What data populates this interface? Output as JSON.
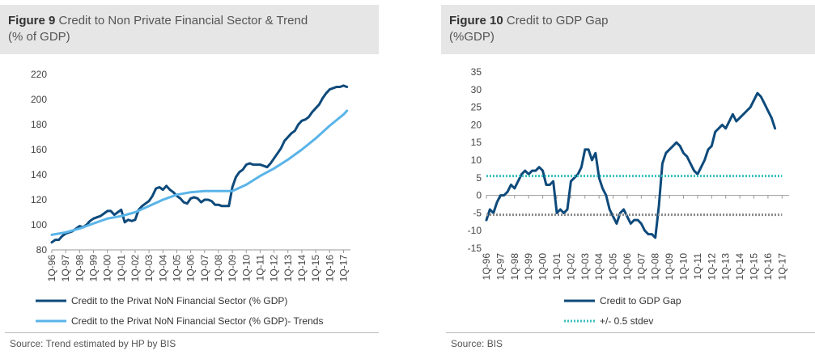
{
  "colors": {
    "dark": "#0e4a7b",
    "light": "#5ab4e8",
    "teal": "#3cbfbf",
    "grey": "#8a8a8a",
    "header_bg": "#e6e6e6"
  },
  "figure9": {
    "label": "Figure 9",
    "title_line1": "Credit to Non Private Financial Sector & Trend",
    "title_line2": "(% of GDP)",
    "source": "Source: Trend estimated by HP by BIS"
  },
  "figure10": {
    "label": "Figure 10",
    "title_line1": "Credit to GDP Gap",
    "title_line2": "(%GDP)",
    "source": "Source: BIS"
  },
  "chart_data": [
    {
      "type": "line",
      "title": "Credit to Non Private Financial Sector & Trend (% of GDP)",
      "x_ticks": [
        "1Q-96",
        "1Q-97",
        "1Q-98",
        "1Q-99",
        "1Q-00",
        "1Q-01",
        "1Q-02",
        "1Q-03",
        "1Q-04",
        "1Q-05",
        "1Q-06",
        "1Q-07",
        "1Q-08",
        "1Q-09",
        "1Q-10",
        "1Q-11",
        "1Q-12",
        "1Q-13",
        "1Q-14",
        "1Q-15",
        "1Q-16",
        "1Q-17"
      ],
      "ylim": [
        80,
        220
      ],
      "y_ticks": [
        80,
        100,
        120,
        140,
        160,
        180,
        200,
        220
      ],
      "grid": "none",
      "legend_position": "bottom",
      "series": [
        {
          "name": "Credit to the Privat NoN Financial Sector (% GDP)",
          "style": "dark",
          "points": [
            [
              1996.0,
              86
            ],
            [
              1996.25,
              88
            ],
            [
              1996.5,
              88
            ],
            [
              1996.75,
              91
            ],
            [
              1997.0,
              93
            ],
            [
              1997.25,
              94
            ],
            [
              1997.5,
              95
            ],
            [
              1997.75,
              97
            ],
            [
              1998.0,
              99
            ],
            [
              1998.25,
              98
            ],
            [
              1998.5,
              100
            ],
            [
              1998.75,
              103
            ],
            [
              1999.0,
              105
            ],
            [
              1999.25,
              106
            ],
            [
              1999.5,
              107
            ],
            [
              1999.75,
              109
            ],
            [
              2000.0,
              111
            ],
            [
              2000.25,
              111
            ],
            [
              2000.5,
              108
            ],
            [
              2000.75,
              110
            ],
            [
              2001.0,
              112
            ],
            [
              2001.25,
              102
            ],
            [
              2001.5,
              104
            ],
            [
              2001.75,
              103
            ],
            [
              2002.0,
              104
            ],
            [
              2002.25,
              112
            ],
            [
              2002.5,
              115
            ],
            [
              2002.75,
              117
            ],
            [
              2003.0,
              119
            ],
            [
              2003.25,
              123
            ],
            [
              2003.5,
              129
            ],
            [
              2003.75,
              130
            ],
            [
              2004.0,
              128
            ],
            [
              2004.25,
              131
            ],
            [
              2004.5,
              128
            ],
            [
              2004.75,
              126
            ],
            [
              2005.0,
              123
            ],
            [
              2005.25,
              121
            ],
            [
              2005.5,
              118
            ],
            [
              2005.75,
              117
            ],
            [
              2006.0,
              121
            ],
            [
              2006.25,
              122
            ],
            [
              2006.5,
              121
            ],
            [
              2006.75,
              118
            ],
            [
              2007.0,
              120
            ],
            [
              2007.25,
              120
            ],
            [
              2007.5,
              119
            ],
            [
              2007.75,
              116
            ],
            [
              2008.0,
              116
            ],
            [
              2008.25,
              115
            ],
            [
              2008.5,
              115
            ],
            [
              2008.75,
              115
            ],
            [
              2009.0,
              130
            ],
            [
              2009.25,
              138
            ],
            [
              2009.5,
              142
            ],
            [
              2009.75,
              144
            ],
            [
              2010.0,
              148
            ],
            [
              2010.25,
              149
            ],
            [
              2010.5,
              148
            ],
            [
              2010.75,
              148
            ],
            [
              2011.0,
              148
            ],
            [
              2011.25,
              147
            ],
            [
              2011.5,
              146
            ],
            [
              2011.75,
              149
            ],
            [
              2012.0,
              153
            ],
            [
              2012.25,
              157
            ],
            [
              2012.5,
              161
            ],
            [
              2012.75,
              167
            ],
            [
              2013.0,
              170
            ],
            [
              2013.25,
              173
            ],
            [
              2013.5,
              175
            ],
            [
              2013.75,
              180
            ],
            [
              2014.0,
              183
            ],
            [
              2014.25,
              184
            ],
            [
              2014.5,
              186
            ],
            [
              2014.75,
              190
            ],
            [
              2015.0,
              193
            ],
            [
              2015.25,
              196
            ],
            [
              2015.5,
              201
            ],
            [
              2015.75,
              205
            ],
            [
              2016.0,
              208
            ],
            [
              2016.25,
              209
            ],
            [
              2016.5,
              210
            ],
            [
              2016.75,
              210
            ],
            [
              2017.0,
              211
            ],
            [
              2017.25,
              210
            ]
          ]
        },
        {
          "name": "Credit to the Privat NoN Financial Sector (% GDP)- Trends",
          "style": "light",
          "points": [
            [
              1996.0,
              92
            ],
            [
              1997.0,
              94
            ],
            [
              1998.0,
              97
            ],
            [
              1999.0,
              101
            ],
            [
              2000.0,
              105
            ],
            [
              2001.0,
              107
            ],
            [
              2002.0,
              110
            ],
            [
              2003.0,
              115
            ],
            [
              2004.0,
              120
            ],
            [
              2005.0,
              124
            ],
            [
              2006.0,
              126
            ],
            [
              2007.0,
              127
            ],
            [
              2008.0,
              127
            ],
            [
              2009.0,
              127
            ],
            [
              2010.0,
              132
            ],
            [
              2011.0,
              139
            ],
            [
              2012.0,
              145
            ],
            [
              2013.0,
              152
            ],
            [
              2014.0,
              160
            ],
            [
              2015.0,
              169
            ],
            [
              2016.0,
              179
            ],
            [
              2017.0,
              188
            ],
            [
              2017.25,
              191
            ]
          ]
        }
      ]
    },
    {
      "type": "line",
      "title": "Credit to GDP Gap (%GDP)",
      "x_ticks": [
        "1Q-96",
        "1Q-97",
        "1Q-98",
        "1Q-99",
        "1Q-00",
        "1Q-01",
        "1Q-02",
        "1Q-03",
        "1Q-04",
        "1Q-05",
        "1Q-06",
        "1Q-07",
        "1Q-08",
        "1Q-09",
        "1Q-10",
        "1Q-11",
        "1Q-12",
        "1Q-13",
        "1Q-14",
        "1Q-15",
        "1Q-16",
        "1Q-17"
      ],
      "ylim": [
        -15,
        35
      ],
      "y_ticks": [
        -15,
        -10,
        -5,
        0,
        5,
        10,
        15,
        20,
        25,
        30,
        35
      ],
      "grid": "none",
      "legend_position": "bottom",
      "series": [
        {
          "name": "Credit to GDP Gap",
          "style": "dark",
          "points": [
            [
              1996.0,
              -7
            ],
            [
              1996.25,
              -4
            ],
            [
              1996.5,
              -5
            ],
            [
              1996.75,
              -2
            ],
            [
              1997.0,
              0
            ],
            [
              1997.25,
              0
            ],
            [
              1997.5,
              1
            ],
            [
              1997.75,
              3
            ],
            [
              1998.0,
              2
            ],
            [
              1998.25,
              4
            ],
            [
              1998.5,
              6
            ],
            [
              1998.75,
              7
            ],
            [
              1999.0,
              6
            ],
            [
              1999.25,
              7
            ],
            [
              1999.5,
              7
            ],
            [
              1999.75,
              8
            ],
            [
              2000.0,
              7
            ],
            [
              2000.25,
              3
            ],
            [
              2000.5,
              3
            ],
            [
              2000.75,
              4
            ],
            [
              2001.0,
              -5
            ],
            [
              2001.25,
              -4
            ],
            [
              2001.5,
              -5
            ],
            [
              2001.75,
              -4
            ],
            [
              2002.0,
              4
            ],
            [
              2002.25,
              5
            ],
            [
              2002.5,
              6
            ],
            [
              2002.75,
              8
            ],
            [
              2003.0,
              13
            ],
            [
              2003.25,
              13
            ],
            [
              2003.5,
              10
            ],
            [
              2003.75,
              12
            ],
            [
              2004.0,
              5
            ],
            [
              2004.25,
              2
            ],
            [
              2004.5,
              0
            ],
            [
              2004.75,
              -4
            ],
            [
              2005.0,
              -6
            ],
            [
              2005.25,
              -8
            ],
            [
              2005.5,
              -5
            ],
            [
              2005.75,
              -4
            ],
            [
              2006.0,
              -6
            ],
            [
              2006.25,
              -8
            ],
            [
              2006.5,
              -7
            ],
            [
              2006.75,
              -7
            ],
            [
              2007.0,
              -8
            ],
            [
              2007.25,
              -10
            ],
            [
              2007.5,
              -11
            ],
            [
              2007.75,
              -11
            ],
            [
              2008.0,
              -12
            ],
            [
              2008.25,
              -3
            ],
            [
              2008.5,
              9
            ],
            [
              2008.75,
              12
            ],
            [
              2009.0,
              13
            ],
            [
              2009.25,
              14
            ],
            [
              2009.5,
              15
            ],
            [
              2009.75,
              14
            ],
            [
              2010.0,
              12
            ],
            [
              2010.25,
              11
            ],
            [
              2010.5,
              9
            ],
            [
              2010.75,
              7
            ],
            [
              2011.0,
              6
            ],
            [
              2011.25,
              8
            ],
            [
              2011.5,
              10
            ],
            [
              2011.75,
              13
            ],
            [
              2012.0,
              14
            ],
            [
              2012.25,
              18
            ],
            [
              2012.5,
              19
            ],
            [
              2012.75,
              20
            ],
            [
              2013.0,
              19
            ],
            [
              2013.25,
              21
            ],
            [
              2013.5,
              23
            ],
            [
              2013.75,
              21
            ],
            [
              2014.0,
              22
            ],
            [
              2014.25,
              23
            ],
            [
              2014.5,
              24
            ],
            [
              2014.75,
              25
            ],
            [
              2015.0,
              27
            ],
            [
              2015.25,
              29
            ],
            [
              2015.5,
              28
            ],
            [
              2015.75,
              26
            ],
            [
              2016.0,
              24
            ],
            [
              2016.25,
              22
            ],
            [
              2016.5,
              19
            ]
          ]
        },
        {
          "name": "+/- 0.5 stdev",
          "style": "teal-dotted",
          "points": [
            [
              1996.0,
              5.5
            ],
            [
              2017.0,
              5.5
            ]
          ]
        },
        {
          "name": "",
          "style": "grey-dotted",
          "points": [
            [
              1996.0,
              -5.5
            ],
            [
              2017.0,
              -5.5
            ]
          ]
        }
      ]
    }
  ]
}
